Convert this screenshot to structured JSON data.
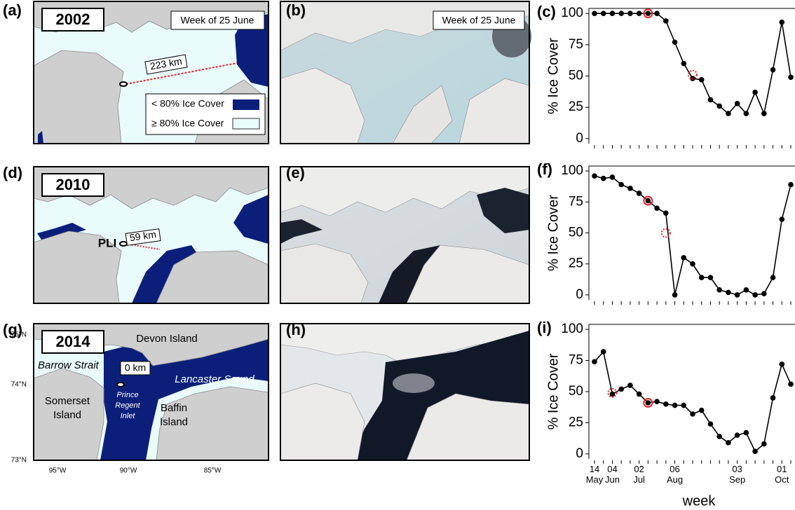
{
  "maps": [
    {
      "label": "(a)",
      "year": "2002",
      "week": "Week of 25 June",
      "distance": "223 km",
      "legend": [
        "< 80% Ice Cover",
        "≥ 80% Ice Cover"
      ]
    },
    {
      "label": "(b)",
      "week": "Week of 25 June"
    },
    {
      "label": "(d)",
      "year": "2010",
      "site": "PLI",
      "distance": "59 km"
    },
    {
      "label": "(e)"
    },
    {
      "label": "(g)",
      "year": "2014",
      "distance": "0 km",
      "places": [
        "Devon Island",
        "Barrow Strait",
        "Lancaster Sound",
        "Somerset",
        "Island",
        "Prince",
        "Regent",
        "Inlet",
        "Baffin",
        "Island"
      ],
      "lat_labels": [
        "75°N",
        "74°N",
        "73°N"
      ],
      "lon_labels": [
        "95°W",
        "90°W",
        "85°W"
      ]
    },
    {
      "label": "(h)"
    }
  ],
  "chart_data": [
    {
      "type": "line",
      "label": "(c)",
      "y_label": "% Ice Cover",
      "categories": [
        null,
        null,
        null,
        null,
        null,
        null,
        null,
        null,
        null,
        null,
        null,
        null,
        null,
        null,
        null,
        null,
        null,
        null,
        null,
        null,
        null,
        null,
        null
      ],
      "series": [
        {
          "color": "#000000",
          "style": "line-points",
          "values": [
            100,
            100,
            100,
            100,
            100,
            100,
            100,
            100,
            94,
            77,
            60,
            48,
            47,
            31,
            26,
            20,
            28,
            20,
            37,
            20,
            55,
            93,
            49
          ]
        },
        {
          "color": "#e0282e",
          "style": "ring",
          "values": [
            null,
            null,
            null,
            null,
            null,
            null,
            100,
            null,
            null,
            null,
            null,
            null,
            null,
            null,
            null,
            null,
            null,
            null,
            null,
            null,
            null,
            null,
            null
          ]
        },
        {
          "color": "#e0282e",
          "style": "dotted-ring",
          "values": [
            null,
            null,
            null,
            null,
            null,
            null,
            null,
            null,
            null,
            null,
            null,
            51,
            null,
            null,
            null,
            null,
            null,
            null,
            null,
            null,
            null,
            null,
            null
          ]
        }
      ],
      "ylim": [
        -4,
        104
      ],
      "yticks": [
        0,
        25,
        50,
        75,
        100
      ]
    },
    {
      "type": "line",
      "label": "(f)",
      "y_label": "% Ice Cover",
      "categories": [
        null,
        null,
        null,
        null,
        null,
        null,
        null,
        null,
        null,
        null,
        null,
        null,
        null,
        null,
        null,
        null,
        null,
        null,
        null,
        null,
        null,
        null,
        null
      ],
      "series": [
        {
          "color": "#000000",
          "style": "line-points",
          "values": [
            96,
            94,
            95,
            89,
            86,
            82,
            76,
            70,
            66,
            0,
            30,
            25,
            14,
            14,
            4,
            2,
            0,
            4,
            0,
            1,
            14,
            61,
            89
          ]
        },
        {
          "color": "#e0282e",
          "style": "ring",
          "values": [
            null,
            null,
            null,
            null,
            null,
            null,
            76,
            null,
            null,
            null,
            null,
            null,
            null,
            null,
            null,
            null,
            null,
            null,
            null,
            null,
            null,
            null,
            null
          ]
        },
        {
          "color": "#e0282e",
          "style": "dotted-ring",
          "values": [
            null,
            null,
            null,
            null,
            null,
            null,
            null,
            null,
            50,
            null,
            null,
            null,
            null,
            null,
            null,
            null,
            null,
            null,
            null,
            null,
            null,
            null,
            null
          ]
        }
      ],
      "ylim": [
        -4,
        104
      ],
      "yticks": [
        0,
        25,
        50,
        75,
        100
      ]
    },
    {
      "type": "line",
      "label": "(i)",
      "y_label": "% Ice Cover",
      "x_label": "week",
      "categories": [
        "14 May",
        null,
        "04 Jun",
        null,
        null,
        "02 Jul",
        null,
        null,
        null,
        "06 Aug",
        null,
        null,
        null,
        null,
        null,
        null,
        "03 Sep",
        null,
        null,
        null,
        null,
        "01 Oct",
        null
      ],
      "series": [
        {
          "color": "#000000",
          "style": "line-points",
          "values": [
            74,
            82,
            48,
            52,
            55,
            48,
            41,
            42,
            40,
            39,
            39,
            32,
            35,
            24,
            14,
            9,
            15,
            17,
            2,
            8,
            45,
            72,
            56
          ]
        },
        {
          "color": "#e0282e",
          "style": "ring",
          "values": [
            null,
            null,
            null,
            null,
            null,
            null,
            41,
            null,
            null,
            null,
            null,
            null,
            null,
            null,
            null,
            null,
            null,
            null,
            null,
            null,
            null,
            null,
            null
          ]
        },
        {
          "color": "#e0282e",
          "style": "dotted-ring",
          "values": [
            null,
            null,
            49,
            null,
            null,
            null,
            null,
            null,
            null,
            null,
            null,
            null,
            null,
            null,
            null,
            null,
            null,
            null,
            null,
            null,
            null,
            null,
            null
          ]
        }
      ],
      "ylim": [
        -4,
        104
      ],
      "yticks": [
        0,
        25,
        50,
        75,
        100
      ]
    }
  ]
}
